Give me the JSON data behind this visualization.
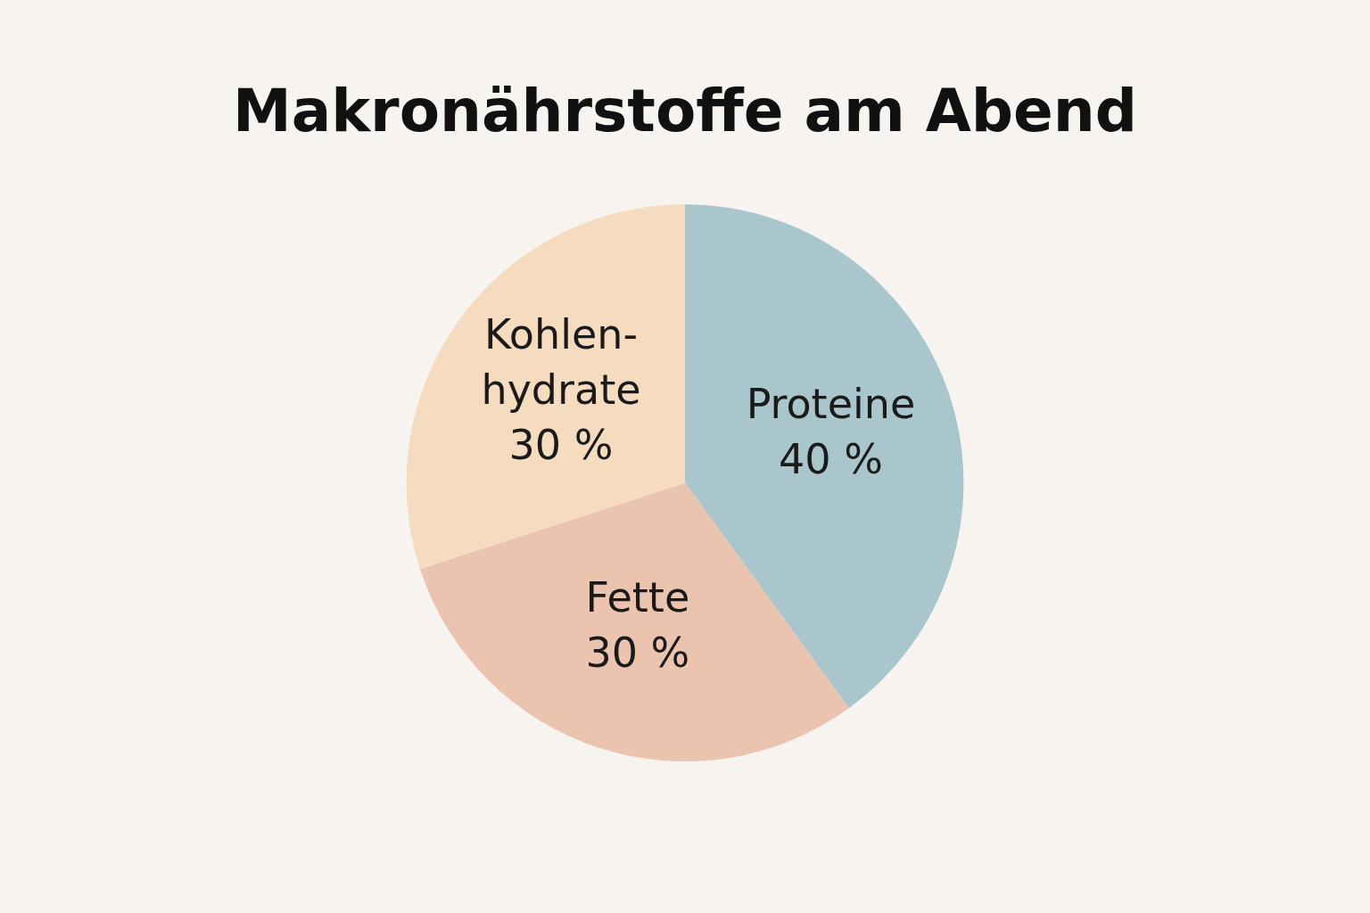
{
  "chart_data": {
    "type": "pie",
    "title": "Makronährstoffe am Abend",
    "categories": [
      "Proteine",
      "Fette",
      "Kohlen-hydrate"
    ],
    "values": [
      40,
      30,
      30
    ],
    "colors": [
      "#a9c6cc",
      "#ebc4b0",
      "#f6dcbf"
    ],
    "value_labels": [
      "40 %",
      "30 %",
      "30 %"
    ],
    "legend": false
  }
}
